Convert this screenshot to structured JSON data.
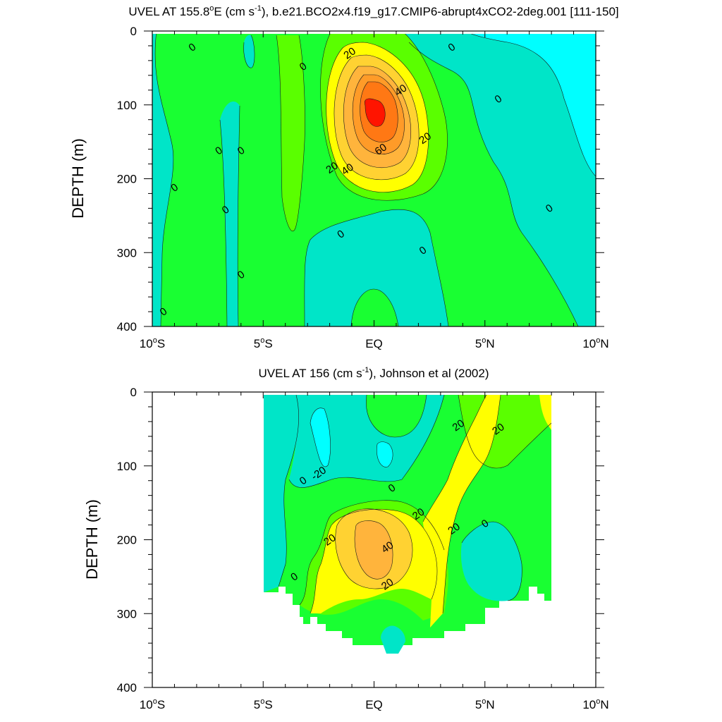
{
  "chart_data": [
    {
      "type": "contour",
      "title": {
        "pre": "UVEL AT 155.8",
        "deg": "o",
        "mid": "E (cm s",
        "sup": "-1",
        "post": "), b.e21.BCO2x4.f19_g17.CMIP6-abrupt4xCO2-2deg.001 [111-150]"
      },
      "ylabel": "DEPTH (m)",
      "xlim": [
        -10,
        10
      ],
      "ylim": [
        400,
        0
      ],
      "x_ticks": [
        {
          "v": -10,
          "num": "10",
          "deg": "o",
          "hem": "S"
        },
        {
          "v": -5,
          "num": "5",
          "deg": "o",
          "hem": "S"
        },
        {
          "v": 0,
          "num": "EQ",
          "deg": "",
          "hem": ""
        },
        {
          "v": 5,
          "num": "5",
          "deg": "o",
          "hem": "N"
        },
        {
          "v": 10,
          "num": "10",
          "deg": "o",
          "hem": "N"
        }
      ],
      "y_ticks": [
        0,
        100,
        200,
        300,
        400
      ],
      "contour_interval": 10,
      "fill_colors": {
        "-10_0": "#00e5c8",
        "lt_-10": "#00ffff",
        "0_10": "#19ff32",
        "10_20": "#5aff00",
        "20_30": "#ffff00",
        "30_40": "#ffd232",
        "40_50": "#ffb43c",
        "50_60": "#ff9b28",
        "60_70": "#ff7814",
        "gt_70": "#ff1400"
      },
      "labels": [
        {
          "text": "0",
          "x": -8.2,
          "y": 22
        },
        {
          "text": "0",
          "x": -3.2,
          "y": 48
        },
        {
          "text": "0",
          "x": -7.0,
          "y": 162
        },
        {
          "text": "0",
          "x": -6.0,
          "y": 162
        },
        {
          "text": "0",
          "x": -9.0,
          "y": 212
        },
        {
          "text": "0",
          "x": -6.7,
          "y": 242
        },
        {
          "text": "0",
          "x": -6.0,
          "y": 330
        },
        {
          "text": "0",
          "x": -9.5,
          "y": 380
        },
        {
          "text": "0",
          "x": 3.5,
          "y": 22
        },
        {
          "text": "0",
          "x": 5.6,
          "y": 92
        },
        {
          "text": "0",
          "x": 7.9,
          "y": 240
        },
        {
          "text": "0",
          "x": -1.5,
          "y": 275
        },
        {
          "text": "0",
          "x": 2.2,
          "y": 297
        },
        {
          "text": "20",
          "x": -1.1,
          "y": 30
        },
        {
          "text": "40",
          "x": 1.2,
          "y": 80
        },
        {
          "text": "20",
          "x": 2.3,
          "y": 145
        },
        {
          "text": "60",
          "x": 0.3,
          "y": 160
        },
        {
          "text": "40",
          "x": -1.2,
          "y": 187
        },
        {
          "text": "20",
          "x": -1.9,
          "y": 185
        }
      ]
    },
    {
      "type": "contour",
      "title": {
        "pre": "UVEL AT 156 (cm s",
        "deg": "",
        "mid": "",
        "sup": "-1",
        "post": "), Johnson et al (2002)"
      },
      "ylabel": "DEPTH (m)",
      "xlim": [
        -10,
        10
      ],
      "ylim": [
        400,
        0
      ],
      "x_ticks": [
        {
          "v": -10,
          "num": "10",
          "deg": "o",
          "hem": "S"
        },
        {
          "v": -5,
          "num": "5",
          "deg": "o",
          "hem": "S"
        },
        {
          "v": 0,
          "num": "EQ",
          "deg": "",
          "hem": ""
        },
        {
          "v": 5,
          "num": "5",
          "deg": "o",
          "hem": "N"
        },
        {
          "v": 10,
          "num": "10",
          "deg": "o",
          "hem": "N"
        }
      ],
      "y_ticks": [
        0,
        100,
        200,
        300,
        400
      ],
      "data_extent": {
        "x": [
          -5,
          8
        ],
        "depth_top": 5
      },
      "labels": [
        {
          "text": "20",
          "x": 3.8,
          "y": 45
        },
        {
          "text": "20",
          "x": 5.6,
          "y": 50
        },
        {
          "text": "-20",
          "x": -2.5,
          "y": 110
        },
        {
          "text": "0",
          "x": -3.2,
          "y": 120
        },
        {
          "text": "0",
          "x": 0.8,
          "y": 130
        },
        {
          "text": "20",
          "x": 2.0,
          "y": 165
        },
        {
          "text": "20",
          "x": 3.6,
          "y": 185
        },
        {
          "text": "0",
          "x": 5.0,
          "y": 178
        },
        {
          "text": "20",
          "x": -2.0,
          "y": 200
        },
        {
          "text": "40",
          "x": 0.6,
          "y": 210
        },
        {
          "text": "20",
          "x": 0.6,
          "y": 260
        },
        {
          "text": "0",
          "x": -3.6,
          "y": 250
        }
      ]
    }
  ]
}
